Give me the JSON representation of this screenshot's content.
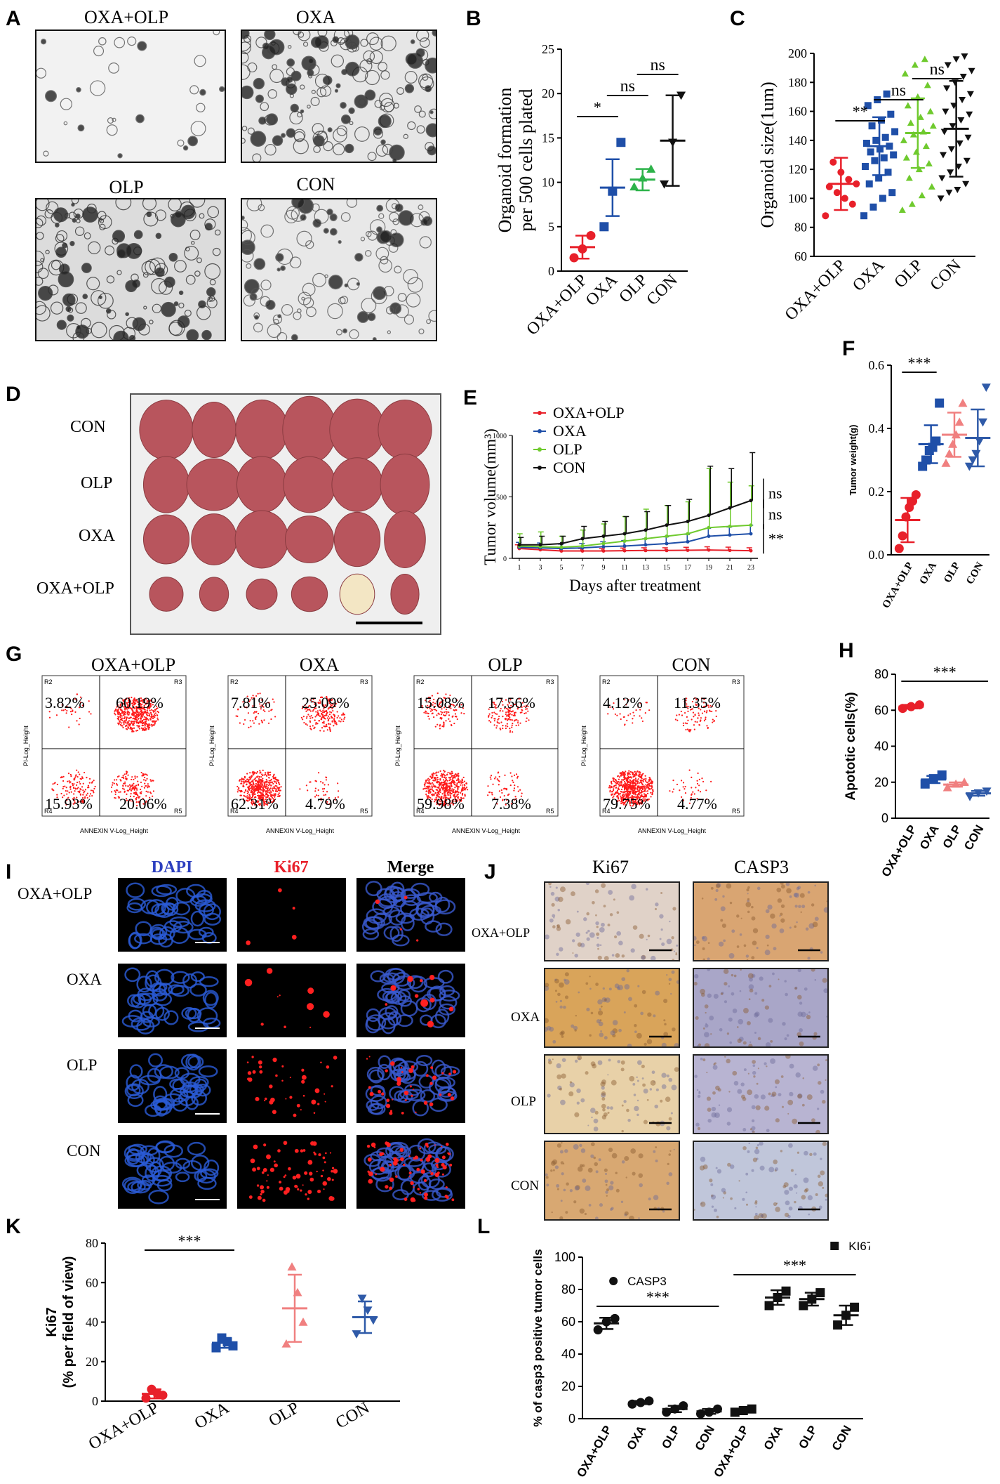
{
  "panels": {
    "A": {
      "letter": "A",
      "images": [
        "OXA+OLP",
        "OXA",
        "OLP",
        "CON"
      ]
    },
    "B": {
      "letter": "B"
    },
    "C": {
      "letter": "C"
    },
    "D": {
      "letter": "D",
      "rows": [
        "CON",
        "OLP",
        "OXA",
        "OXA+OLP"
      ]
    },
    "E": {
      "letter": "E"
    },
    "F": {
      "letter": "F"
    },
    "G": {
      "letter": "G",
      "plots": [
        {
          "title": "OXA+OLP",
          "q": [
            "3.82%",
            "60.19%",
            "15.93%",
            "20.06%"
          ]
        },
        {
          "title": "OXA",
          "q": [
            "7.81%",
            "25.09%",
            "62.31%",
            "4.79%"
          ]
        },
        {
          "title": "OLP",
          "q": [
            "15.08%",
            "17.56%",
            "59.98%",
            "7.38%"
          ]
        },
        {
          "title": "CON",
          "q": [
            "4.12%",
            "11.35%",
            "79.75%",
            "4.77%"
          ]
        }
      ],
      "xlabel": "ANNEXIN V-Log_Height",
      "ylabel": "PI-Log_Height",
      "regions": [
        "R2",
        "R3",
        "R4",
        "R5"
      ]
    },
    "H": {
      "letter": "H"
    },
    "I": {
      "letter": "I",
      "cols": [
        "DAPI",
        "Ki67",
        "Merge"
      ],
      "rows": [
        "OXA+OLP",
        "OXA",
        "OLP",
        "CON"
      ]
    },
    "J": {
      "letter": "J",
      "cols": [
        "Ki67",
        "CASP3"
      ],
      "rows": [
        "OXA+OLP",
        "OXA",
        "OLP",
        "CON"
      ]
    },
    "K": {
      "letter": "K"
    },
    "L": {
      "letter": "L"
    }
  },
  "chart_data": [
    {
      "id": "B",
      "type": "scatter",
      "ylabel": "Organoid formation per 500 cells plated",
      "categories": [
        "OXA+OLP",
        "OXA",
        "OLP",
        "CON"
      ],
      "ylim": [
        0,
        25
      ],
      "yticks": [
        0,
        5,
        10,
        15,
        20,
        25
      ],
      "colors": [
        "#e8202a",
        "#1f4fa8",
        "#2db34a",
        "#111111"
      ],
      "markers": [
        "circle",
        "square",
        "triangle",
        "triangle-down"
      ],
      "points": [
        [
          1.5,
          2.5,
          4.0
        ],
        [
          5.0,
          9.0,
          14.5
        ],
        [
          9.5,
          10.5,
          11.5
        ],
        [
          9.8,
          14.5,
          19.8
        ]
      ],
      "mean": [
        2.7,
        9.4,
        10.3,
        14.7
      ],
      "sd": [
        1.3,
        3.2,
        1.2,
        5.1
      ],
      "annotations": [
        {
          "text": "*",
          "from": 0,
          "to": 1
        },
        {
          "text": "ns",
          "from": 1,
          "to": 2
        },
        {
          "text": "ns",
          "from": 2,
          "to": 3
        }
      ]
    },
    {
      "id": "C",
      "type": "scatter",
      "ylabel": "Organoid size(1um)",
      "categories": [
        "OXA+OLP",
        "OXA",
        "OLP",
        "CON"
      ],
      "ylim": [
        60,
        200
      ],
      "yticks": [
        60,
        80,
        100,
        120,
        140,
        160,
        180,
        200
      ],
      "colors": [
        "#e8202a",
        "#1f4fa8",
        "#6fca2e",
        "#111111"
      ],
      "markers": [
        "circle",
        "square",
        "triangle",
        "triangle-down"
      ],
      "points": [
        [
          88,
          96,
          100,
          104,
          108,
          110,
          113,
          118,
          125
        ],
        [
          88,
          94,
          100,
          104,
          110,
          114,
          118,
          122,
          126,
          128,
          130,
          132,
          134,
          136,
          138,
          140,
          142,
          146,
          150,
          154,
          158,
          164,
          168,
          172
        ],
        [
          92,
          96,
          102,
          108,
          114,
          120,
          124,
          128,
          132,
          136,
          140,
          144,
          146,
          150,
          152,
          156,
          160,
          164,
          170,
          178,
          186,
          192,
          196
        ],
        [
          100,
          104,
          106,
          110,
          114,
          118,
          122,
          126,
          130,
          134,
          138,
          142,
          146,
          150,
          154,
          158,
          160,
          164,
          168,
          172,
          176,
          180,
          184,
          188,
          192,
          196,
          198
        ]
      ],
      "mean": [
        110,
        136,
        145,
        148
      ],
      "sd": [
        18,
        20,
        24,
        33
      ],
      "annotations": [
        {
          "text": "**",
          "from": 0,
          "to": 1
        },
        {
          "text": "ns",
          "from": 1,
          "to": 2
        },
        {
          "text": "ns",
          "from": 2,
          "to": 3
        }
      ]
    },
    {
      "id": "E",
      "type": "line",
      "xlabel": "Days after treatment",
      "ylabel": "Tumor volume(mm³)",
      "x": [
        1,
        3,
        5,
        7,
        9,
        11,
        13,
        15,
        17,
        19,
        21,
        23
      ],
      "ylim": [
        0,
        1000
      ],
      "yticks": [
        0,
        500,
        1000
      ],
      "series": [
        {
          "name": "OXA+OLP",
          "color": "#e8202a",
          "values": [
            80,
            70,
            60,
            60,
            60,
            62,
            64,
            64,
            66,
            68,
            65,
            62
          ],
          "err": [
            30,
            25,
            20,
            20,
            20,
            22,
            22,
            22,
            24,
            26,
            26,
            24
          ]
        },
        {
          "name": "OXA",
          "color": "#1f4fa8",
          "values": [
            90,
            85,
            80,
            85,
            95,
            100,
            110,
            120,
            135,
            180,
            190,
            200
          ],
          "err": [
            40,
            40,
            35,
            35,
            40,
            45,
            50,
            55,
            60,
            65,
            65,
            70
          ]
        },
        {
          "name": "OLP",
          "color": "#6fca2e",
          "values": [
            100,
            95,
            90,
            100,
            120,
            140,
            160,
            180,
            200,
            250,
            260,
            270
          ],
          "err": [
            100,
            120,
            90,
            130,
            160,
            200,
            240,
            250,
            260,
            480,
            360,
            320
          ]
        },
        {
          "name": "CON",
          "color": "#111111",
          "values": [
            110,
            110,
            120,
            160,
            180,
            200,
            230,
            270,
            300,
            350,
            410,
            470
          ],
          "err": [
            60,
            70,
            60,
            100,
            120,
            140,
            150,
            160,
            180,
            400,
            320,
            390
          ]
        }
      ],
      "annotations": [
        "ns",
        "ns",
        "**"
      ]
    },
    {
      "id": "F",
      "type": "scatter",
      "ylabel": "Tumor weight(g)",
      "categories": [
        "OXA+OLP",
        "OXA",
        "OLP",
        "CON"
      ],
      "ylim": [
        0,
        0.6
      ],
      "yticks": [
        0.0,
        0.2,
        0.4,
        0.6
      ],
      "colors": [
        "#e8202a",
        "#1f4fa8",
        "#f08080",
        "#2f5aa8"
      ],
      "markers": [
        "circle",
        "square",
        "triangle",
        "triangle-down"
      ],
      "points": [
        [
          0.02,
          0.06,
          0.12,
          0.15,
          0.17,
          0.19
        ],
        [
          0.28,
          0.3,
          0.33,
          0.34,
          0.36,
          0.48
        ],
        [
          0.29,
          0.32,
          0.35,
          0.38,
          0.42,
          0.48
        ],
        [
          0.28,
          0.3,
          0.32,
          0.36,
          0.42,
          0.53
        ]
      ],
      "mean": [
        0.11,
        0.35,
        0.38,
        0.37
      ],
      "sd": [
        0.07,
        0.06,
        0.07,
        0.09
      ],
      "annotations": [
        {
          "text": "***",
          "from": 0,
          "to": 1
        }
      ]
    },
    {
      "id": "H",
      "type": "scatter",
      "ylabel": "Apototic cells(%)",
      "categories": [
        "OXA+OLP",
        "OXA",
        "OLP",
        "CON"
      ],
      "ylim": [
        0,
        80
      ],
      "yticks": [
        0,
        20,
        40,
        60,
        80
      ],
      "colors": [
        "#e8202a",
        "#1f4fa8",
        "#f08080",
        "#2f5aa8"
      ],
      "markers": [
        "circle",
        "square",
        "triangle",
        "triangle-down"
      ],
      "points": [
        [
          61,
          62,
          63
        ],
        [
          19,
          22,
          24
        ],
        [
          17,
          19,
          20
        ],
        [
          12,
          14,
          15
        ]
      ],
      "mean": [
        62,
        21.5,
        18.7,
        13.8
      ],
      "sd": [
        1,
        2,
        1.2,
        1.3
      ],
      "annotations": [
        {
          "text": "***",
          "from": 0,
          "to": 3
        }
      ]
    },
    {
      "id": "K",
      "type": "scatter",
      "ylabel": "Ki67 (% per field of view)",
      "categories": [
        "OXA+OLP",
        "OXA",
        "OLP",
        "CON"
      ],
      "ylim": [
        0,
        80
      ],
      "yticks": [
        0,
        20,
        40,
        60,
        80
      ],
      "colors": [
        "#e8202a",
        "#1f4fa8",
        "#f08080",
        "#2f5aa8"
      ],
      "markers": [
        "circle",
        "square",
        "triangle",
        "triangle-down"
      ],
      "points": [
        [
          1.5,
          3,
          4,
          6
        ],
        [
          27,
          28,
          30,
          32
        ],
        [
          29,
          40,
          55,
          68
        ],
        [
          34,
          41,
          46,
          52
        ]
      ],
      "mean": [
        3.7,
        29.5,
        47,
        42.5
      ],
      "sd": [
        2.3,
        2.5,
        17,
        8
      ],
      "annotations": [
        {
          "text": "***",
          "from": 0,
          "to": 1
        }
      ]
    },
    {
      "id": "L",
      "type": "scatter",
      "ylabel": "% of casp3 positive tumor cells",
      "categories": [
        "OXA+OLP",
        "OXA",
        "OLP",
        "CON",
        "OXA+OLP",
        "OXA",
        "OLP",
        "CON"
      ],
      "ylim": [
        0,
        100
      ],
      "yticks": [
        0,
        20,
        40,
        60,
        80,
        100
      ],
      "series": [
        {
          "name": "CASP3",
          "marker": "circle",
          "groups": [
            0,
            1,
            2,
            3
          ],
          "points": [
            [
              55,
              60,
              62
            ],
            [
              9,
              10,
              11
            ],
            [
              4,
              6,
              8
            ],
            [
              3,
              4,
              6
            ]
          ],
          "mean": [
            59,
            10,
            6,
            4.5
          ],
          "sd": [
            3.5,
            1,
            2,
            1.5
          ]
        },
        {
          "name": "KI67",
          "marker": "square",
          "groups": [
            4,
            5,
            6,
            7
          ],
          "points": [
            [
              4,
              5,
              6
            ],
            [
              70,
              75,
              79
            ],
            [
              70,
              74,
              78
            ],
            [
              58,
              64,
              69
            ]
          ],
          "mean": [
            5,
            75,
            74,
            64
          ],
          "sd": [
            1,
            4.5,
            4,
            6
          ]
        }
      ],
      "annotations": [
        {
          "text": "***",
          "from": 0,
          "to": 3
        },
        {
          "text": "***",
          "from": 4,
          "to": 7
        }
      ]
    }
  ]
}
